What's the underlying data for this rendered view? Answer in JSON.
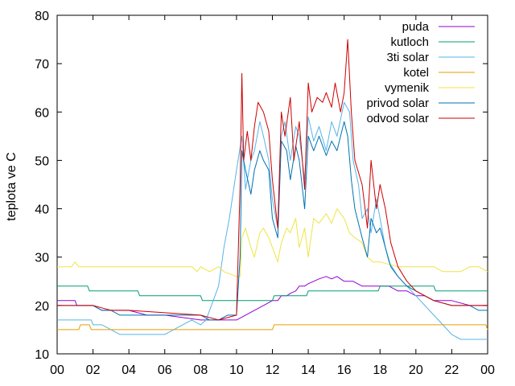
{
  "chart_data": {
    "type": "line",
    "title": "",
    "xlabel": "",
    "ylabel": "teplota ve C",
    "xlim": [
      0,
      24
    ],
    "ylim": [
      10,
      80
    ],
    "x_ticks": [
      "00",
      "02",
      "04",
      "06",
      "08",
      "10",
      "12",
      "14",
      "16",
      "18",
      "20",
      "22",
      "00"
    ],
    "y_ticks": [
      "10",
      "20",
      "30",
      "40",
      "50",
      "60",
      "70",
      "80"
    ],
    "grid": false,
    "legend": "top-right",
    "series": [
      {
        "name": "puda",
        "color": "#9400d3",
        "x": [
          0,
          1.0,
          1.1,
          1.8,
          2.0,
          2.5,
          4.0,
          5.0,
          6.0,
          8.0,
          9.0,
          10.0,
          10.5,
          11.0,
          11.5,
          12.0,
          12.3,
          12.5,
          12.8,
          13.0,
          13.3,
          13.5,
          13.8,
          14.0,
          14.3,
          14.6,
          15.0,
          15.3,
          15.6,
          16.0,
          16.5,
          17.0,
          17.5,
          18.0,
          18.5,
          19.0,
          19.5,
          20.0,
          20.5,
          21.0,
          22.0,
          23.0,
          23.5,
          24.0
        ],
        "y": [
          21,
          21,
          20,
          20,
          20,
          19,
          19,
          18,
          18,
          17,
          17,
          17,
          18,
          19,
          20,
          21,
          21,
          22,
          22,
          22.5,
          23,
          24,
          24,
          24.5,
          25,
          25.5,
          26,
          25.5,
          26,
          25,
          25,
          24,
          24,
          24,
          24,
          23,
          23,
          22,
          22,
          21,
          21,
          20,
          20,
          20
        ]
      },
      {
        "name": "kutloch",
        "color": "#009e73",
        "x": [
          0,
          1.7,
          1.8,
          4.5,
          4.6,
          8.0,
          8.1,
          12.0,
          12.1,
          13.9,
          14.0,
          17.9,
          18.0,
          21.0,
          21.1,
          24.0
        ],
        "y": [
          24,
          24,
          23,
          23,
          22,
          22,
          21,
          21,
          22,
          22,
          23,
          23,
          24,
          24,
          23,
          23
        ]
      },
      {
        "name": "3ti solar",
        "color": "#56b4e9",
        "x": [
          0,
          1.9,
          2.0,
          2.5,
          3.0,
          3.5,
          4.0,
          6.0,
          6.5,
          7.0,
          7.5,
          8.0,
          8.3,
          8.6,
          9.0,
          9.3,
          9.6,
          10.0,
          10.3,
          10.5,
          10.8,
          11.0,
          11.3,
          11.5,
          11.8,
          12.0,
          12.3,
          12.5,
          12.7,
          13.0,
          13.3,
          13.5,
          13.8,
          14.0,
          14.3,
          14.6,
          15.0,
          15.3,
          15.6,
          16.0,
          16.3,
          16.5,
          16.8,
          17.0,
          17.3,
          17.5,
          17.8,
          18.0,
          18.3,
          18.5,
          19.0,
          19.5,
          20.0,
          20.5,
          21.0,
          21.5,
          22.0,
          22.5,
          23.0,
          24.0
        ],
        "y": [
          17,
          17,
          16,
          16,
          15,
          14,
          14,
          14,
          15,
          16,
          17,
          16,
          17,
          20,
          24,
          32,
          38,
          48,
          55,
          44,
          50,
          52,
          58,
          55,
          50,
          42,
          36,
          55,
          58,
          50,
          57,
          55,
          46,
          59,
          54,
          57,
          52,
          58,
          55,
          62,
          60,
          50,
          45,
          38,
          40,
          35,
          42,
          38,
          32,
          29,
          26,
          24,
          22,
          20,
          18,
          16,
          14,
          13,
          13,
          13
        ]
      },
      {
        "name": "kotel",
        "color": "#e69f00",
        "x": [
          0,
          1.2,
          1.3,
          1.8,
          1.9,
          12.0,
          12.1,
          23.9,
          24.0
        ],
        "y": [
          15,
          15,
          16,
          16,
          15,
          15,
          16,
          16,
          15
        ]
      },
      {
        "name": "vymenik",
        "color": "#f0e442",
        "x": [
          0,
          0.8,
          1.0,
          1.2,
          7.5,
          7.8,
          8.0,
          8.5,
          9.0,
          9.3,
          10.0,
          10.2,
          10.3,
          10.5,
          10.8,
          11.0,
          11.3,
          11.5,
          11.8,
          12.0,
          12.3,
          12.5,
          12.8,
          13.0,
          13.3,
          13.5,
          13.8,
          14.0,
          14.3,
          14.6,
          15.0,
          15.3,
          15.6,
          16.0,
          16.3,
          16.6,
          17.0,
          17.3,
          17.6,
          18.0,
          19.0,
          20.0,
          21.0,
          21.5,
          22.0,
          22.5,
          23.0,
          23.5,
          24.0
        ],
        "y": [
          28,
          28,
          29,
          28,
          28,
          27,
          28,
          27,
          28,
          27,
          26,
          26,
          34,
          36,
          32,
          30,
          35,
          36,
          34,
          32,
          29,
          33,
          36,
          35,
          38,
          32,
          36,
          30,
          38,
          37,
          39,
          37,
          40,
          38,
          35,
          34,
          33,
          30,
          29,
          29,
          28,
          28,
          28,
          27,
          27,
          27,
          28,
          28,
          27
        ]
      },
      {
        "name": "privod solar",
        "color": "#0072b2",
        "x": [
          0,
          2.0,
          2.5,
          3.0,
          3.5,
          4.0,
          8.0,
          8.5,
          9.0,
          9.5,
          10.0,
          10.2,
          10.3,
          10.5,
          10.8,
          11.0,
          11.3,
          11.5,
          11.8,
          12.0,
          12.3,
          12.5,
          12.8,
          13.0,
          13.3,
          13.5,
          13.8,
          14.0,
          14.3,
          14.6,
          15.0,
          15.3,
          15.6,
          16.0,
          16.2,
          16.4,
          16.6,
          17.0,
          17.3,
          17.5,
          17.8,
          18.0,
          18.3,
          18.6,
          19.0,
          19.5,
          20.0,
          21.0,
          22.0,
          23.0,
          23.5,
          24.0
        ],
        "y": [
          20,
          20,
          19,
          19,
          18,
          18,
          18,
          17,
          17,
          18,
          18,
          30,
          52,
          48,
          43,
          48,
          52,
          50,
          48,
          38,
          34,
          54,
          52,
          46,
          53,
          50,
          40,
          55,
          52,
          55,
          51,
          54,
          52,
          58,
          55,
          46,
          40,
          34,
          30,
          38,
          35,
          36,
          32,
          28,
          26,
          24,
          23,
          21,
          20,
          20,
          19,
          19
        ]
      },
      {
        "name": "odvod solar",
        "color": "#cc0000",
        "x": [
          0,
          1.0,
          2.0,
          3.0,
          4.0,
          8.0,
          9.0,
          10.0,
          10.2,
          10.3,
          10.4,
          10.6,
          10.8,
          11.0,
          11.2,
          11.5,
          11.8,
          12.0,
          12.3,
          12.5,
          12.7,
          13.0,
          13.2,
          13.5,
          13.8,
          14.0,
          14.2,
          14.5,
          14.8,
          15.0,
          15.3,
          15.5,
          15.8,
          16.0,
          16.2,
          16.4,
          16.6,
          17.0,
          17.3,
          17.5,
          17.8,
          18.0,
          18.3,
          18.6,
          19.0,
          19.5,
          20.0,
          20.5,
          21.0,
          22.0,
          23.0,
          24.0
        ],
        "y": [
          20,
          20,
          20,
          19,
          19,
          18,
          17,
          18,
          45,
          68,
          50,
          56,
          50,
          57,
          62,
          60,
          56,
          46,
          36,
          60,
          55,
          63,
          50,
          58,
          44,
          66,
          60,
          63,
          62,
          64,
          61,
          66,
          60,
          64,
          75,
          60,
          50,
          45,
          36,
          50,
          40,
          45,
          40,
          33,
          28,
          25,
          23,
          22,
          21,
          20,
          20,
          20
        ]
      }
    ]
  }
}
